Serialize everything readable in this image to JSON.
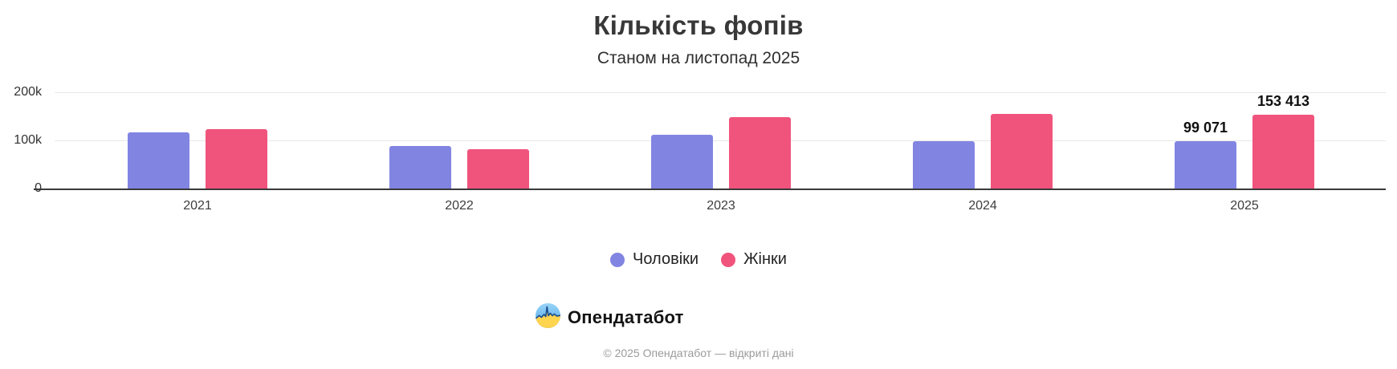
{
  "header": {
    "title": "Кількість фопів",
    "subtitle": "Станом на листопад 2025"
  },
  "chart_data": {
    "type": "bar",
    "title": "Кількість фопів",
    "subtitle": "Станом на листопад 2025",
    "categories": [
      "2021",
      "2022",
      "2023",
      "2024",
      "2025"
    ],
    "series": [
      {
        "name": "Чоловіки",
        "key": "men",
        "color": "#8284E2",
        "values": [
          116000,
          88000,
          111000,
          99000,
          99071
        ],
        "labels": [
          "",
          "",
          "",
          "",
          "99 071"
        ]
      },
      {
        "name": "Жінки",
        "key": "women",
        "color": "#F0547C",
        "values": [
          124000,
          81000,
          148000,
          155000,
          153413
        ],
        "labels": [
          "",
          "",
          "",
          "",
          "153 413"
        ]
      }
    ],
    "y_axis": {
      "ticks": [
        {
          "label": "0",
          "value": 0
        },
        {
          "label": "100k",
          "value": 100000
        },
        {
          "label": "200k",
          "value": 200000
        }
      ],
      "range": [
        0,
        220000
      ],
      "grid": true
    },
    "legend_position": "bottom",
    "data_labels_note": "values shown only for 2025 bars"
  },
  "branding": {
    "logo_text": "Опендатабот",
    "logo_colors": {
      "blue": "#4AA6EE",
      "blue_light": "#9AD4F6",
      "yellow": "#FFD44E",
      "navy": "#1D4F8F"
    }
  },
  "footer": {
    "copyright": "© 2025 Опендатабот — відкриті дані"
  }
}
